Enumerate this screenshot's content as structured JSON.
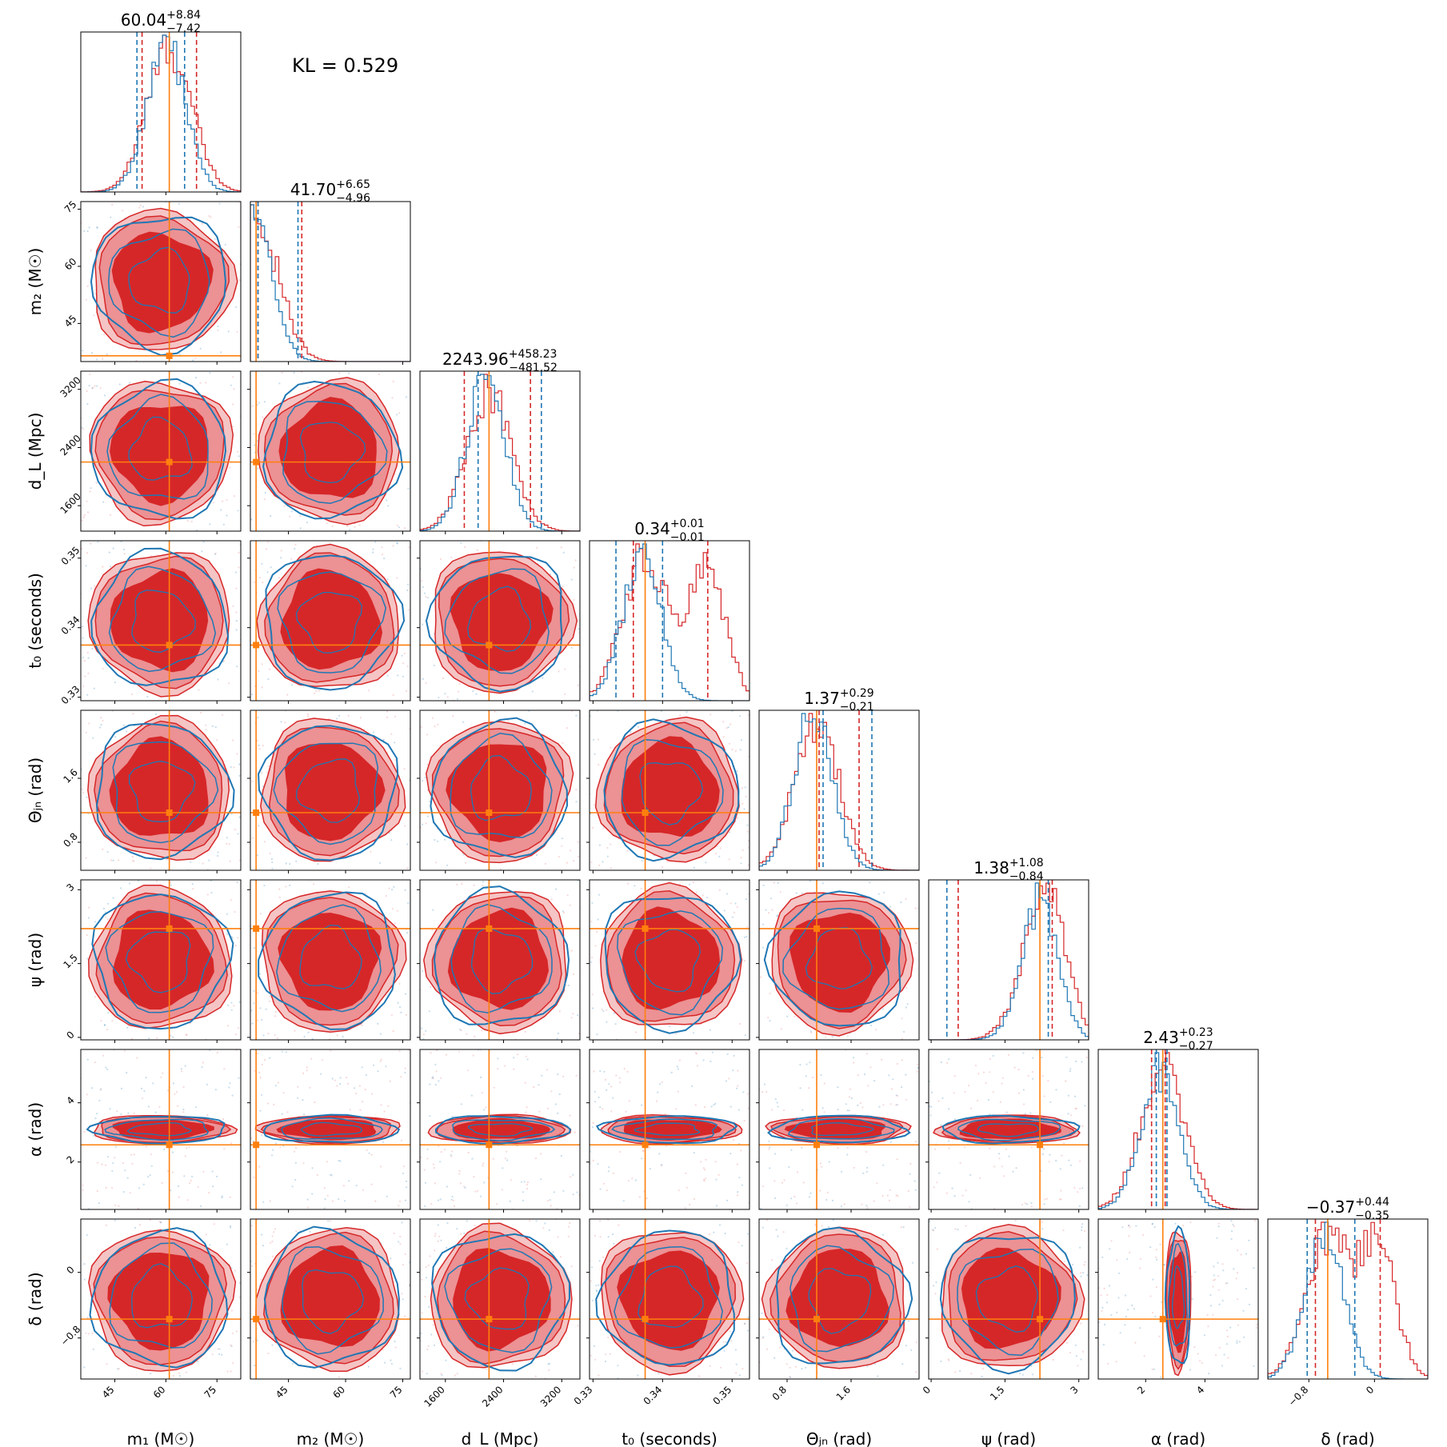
{
  "chart_data": {
    "type": "corner",
    "annotation": "KL = 0.529",
    "params": [
      {
        "label": "m₁ (M☉)",
        "range": [
          35,
          82
        ],
        "ticks": [
          45,
          60,
          75
        ],
        "truth": 61.0,
        "title": {
          "median": "60.04",
          "plus": "+8.84",
          "minus": "−7.42"
        },
        "red_quantiles": [
          53.0,
          69.0
        ],
        "blue_quantiles": [
          51.5,
          65.5
        ]
      },
      {
        "label": "m₂ (M☉)",
        "range": [
          35,
          77
        ],
        "ticks": [
          45,
          60,
          75
        ],
        "truth": 36.5,
        "title": {
          "median": "41.70",
          "plus": "+6.65",
          "minus": "−4.96"
        },
        "red_quantiles": [
          37.0,
          48.5
        ],
        "blue_quantiles": [
          37.0,
          47.5
        ]
      },
      {
        "label": "d_L (Mpc)",
        "range": [
          1250,
          3450
        ],
        "ticks": [
          1600,
          2400,
          3200
        ],
        "truth": 2200,
        "title": {
          "median": "2243.96",
          "plus": "+458.23",
          "minus": "−481.52"
        },
        "red_quantiles": [
          1860,
          2770
        ],
        "blue_quantiles": [
          2050,
          2920
        ]
      },
      {
        "label": "t₀ (seconds)",
        "range": [
          0.3295,
          0.3525
        ],
        "ticks": [
          0.33,
          0.34,
          0.35
        ],
        "truth": 0.3375,
        "title": {
          "median": "0.34",
          "plus": "+0.01",
          "minus": "−0.01"
        },
        "red_quantiles": [
          0.3358,
          0.3465
        ],
        "blue_quantiles": [
          0.3333,
          0.34
        ]
      },
      {
        "label": "Θⱼₙ (rad)",
        "range": [
          0.45,
          2.45
        ],
        "ticks": [
          0.8,
          1.6
        ],
        "truth": 1.17,
        "title": {
          "median": "1.37",
          "plus": "+0.29",
          "minus": "−0.21"
        },
        "red_quantiles": [
          1.2,
          1.7
        ],
        "blue_quantiles": [
          1.25,
          1.86
        ]
      },
      {
        "label": "ψ (rad)",
        "range": [
          -0.05,
          3.2
        ],
        "ticks": [
          0.0,
          1.5,
          3.0
        ],
        "truth": 2.21,
        "title": {
          "median": "1.38",
          "plus": "+1.08",
          "minus": "−0.84"
        },
        "red_quantiles": [
          0.55,
          2.46
        ],
        "blue_quantiles": [
          0.32,
          2.38
        ]
      },
      {
        "label": "α (rad)",
        "range": [
          0.4,
          5.8
        ],
        "ticks": [
          2,
          4
        ],
        "truth": 2.58,
        "title": {
          "median": "2.43",
          "plus": "+0.23",
          "minus": "−0.27"
        },
        "red_quantiles": [
          2.2,
          2.66
        ],
        "blue_quantiles": [
          2.36,
          2.72
        ]
      },
      {
        "label": "δ (rad)",
        "range": [
          -1.3,
          0.65
        ],
        "ticks": [
          -0.8,
          0.0
        ],
        "truth": -0.57,
        "title": {
          "median": "−0.37",
          "plus": "+0.44",
          "minus": "−0.35"
        },
        "red_quantiles": [
          -0.72,
          0.07
        ],
        "blue_quantiles": [
          -0.82,
          -0.24
        ]
      }
    ],
    "series": [
      {
        "name": "",
        "color": "#d62728"
      },
      {
        "name": "",
        "color": "#1f77b4"
      }
    ],
    "truth_color": "#ff7f0e"
  }
}
